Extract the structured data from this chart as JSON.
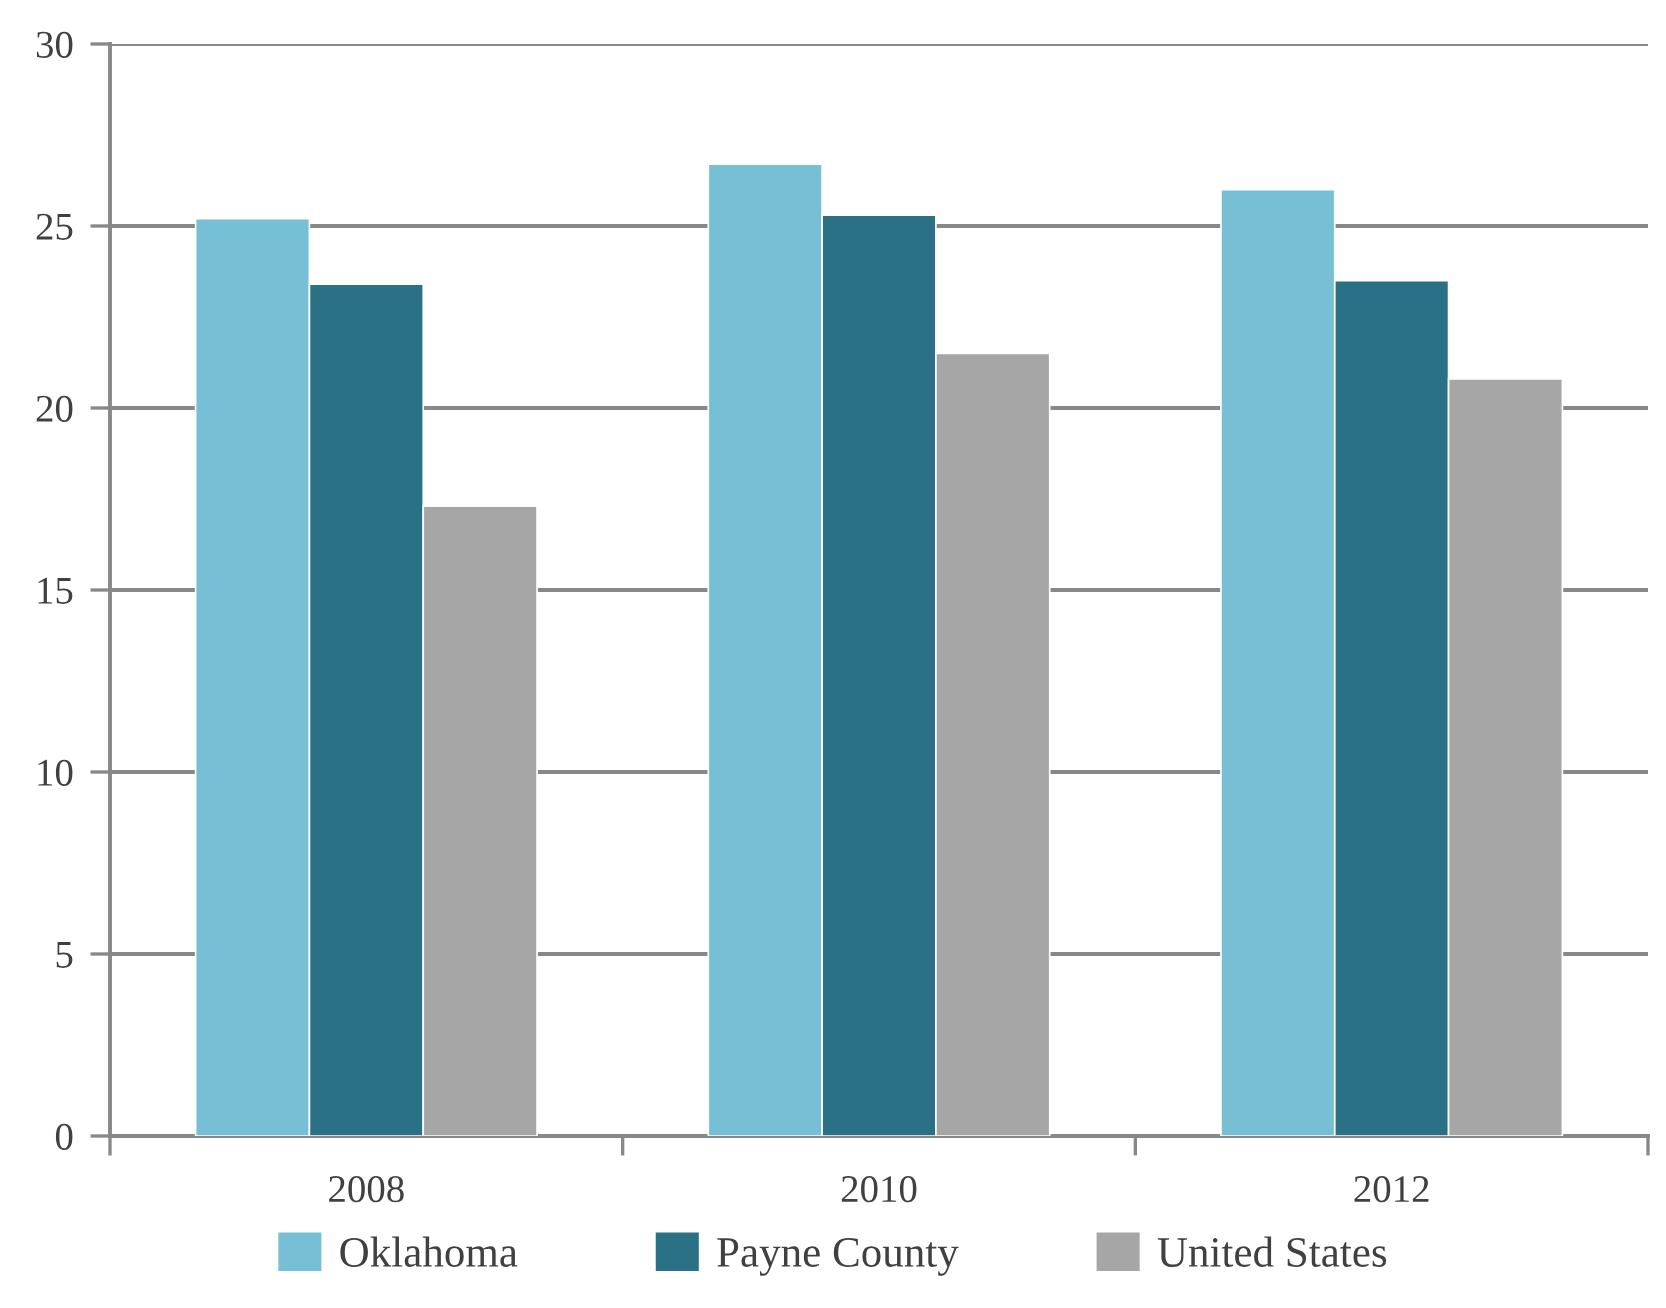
{
  "chart_data": {
    "type": "bar",
    "categories": [
      "2008",
      "2010",
      "2012"
    ],
    "series": [
      {
        "name": "Oklahoma",
        "color": "#77bfd4",
        "values": [
          25.2,
          26.7,
          26.0
        ]
      },
      {
        "name": "Payne County",
        "color": "#2a7185",
        "values": [
          23.4,
          25.3,
          23.5
        ]
      },
      {
        "name": "United States",
        "color": "#a6a6a6",
        "values": [
          17.3,
          21.5,
          20.8
        ]
      }
    ],
    "ylim": [
      0,
      30
    ],
    "yticks": [
      0,
      5,
      10,
      15,
      20,
      25,
      30
    ],
    "grid": "y",
    "legend": "bottom"
  }
}
